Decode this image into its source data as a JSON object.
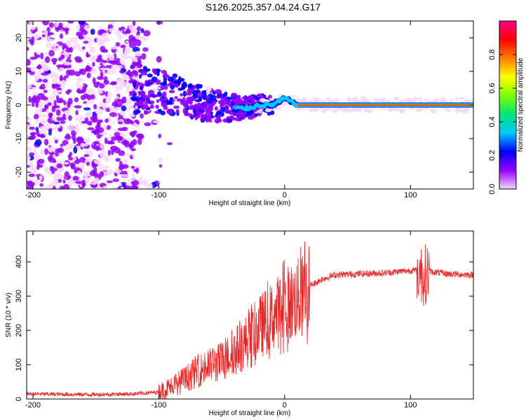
{
  "figure": {
    "title": "S126.2025.357.04.24.G17"
  },
  "chart_data": [
    {
      "type": "heatmap",
      "xlabel": "Height of straight line (km)",
      "ylabel": "Frequency (Hz)",
      "xlim": [
        -205,
        150
      ],
      "ylim": [
        -25,
        25
      ],
      "x_ticks": [
        -200,
        -100,
        0,
        100
      ],
      "x_tick_labels": [
        "-200",
        "-100",
        "0",
        "100"
      ],
      "y_ticks": [
        20,
        10,
        0,
        -10,
        -20
      ],
      "y_tick_labels": [
        "20",
        "10",
        "0",
        "-10",
        "-20"
      ],
      "colorbar": {
        "label": "Normalized spectral amplitude",
        "range": [
          0,
          1
        ],
        "ticks": [
          0.0,
          0.2,
          0.4,
          0.6,
          0.8
        ],
        "tick_labels": [
          "0.0",
          "0.2",
          "0.4",
          "0.6",
          "0.8"
        ],
        "colors": [
          "#f4d8fb",
          "#9400ff",
          "#0000ff",
          "#00c8ff",
          "#00e676",
          "#7cff00",
          "#ffff00",
          "#ff7f00",
          "#ff0000",
          "#ff0088"
        ]
      },
      "ridge": {
        "x": [
          -120,
          -100,
          -80,
          -60,
          -40,
          -30,
          -20,
          -10,
          0,
          10,
          40,
          80,
          100,
          110,
          150
        ],
        "freq_hz": [
          5,
          4,
          2,
          0,
          -1,
          -1,
          0,
          0,
          2,
          0,
          0,
          0,
          0,
          0,
          0
        ]
      }
    },
    {
      "type": "line",
      "xlabel": "Height of straight line (km)",
      "ylabel": "SNR (10 * v/v)",
      "xlim": [
        -205,
        150
      ],
      "ylim": [
        0,
        490
      ],
      "x_ticks": [
        -200,
        -100,
        0,
        100
      ],
      "x_tick_labels": [
        "-200",
        "-100",
        "0",
        "100"
      ],
      "y_ticks": [
        0,
        100,
        200,
        300,
        400
      ],
      "y_tick_labels": [
        "0",
        "100",
        "200",
        "300",
        "400"
      ],
      "color": "#ee2222",
      "series": [
        {
          "name": "SNR",
          "x": [
            -205,
            -180,
            -150,
            -120,
            -100,
            -90,
            -80,
            -70,
            -60,
            -50,
            -40,
            -30,
            -20,
            -10,
            0,
            10,
            15,
            20,
            30,
            40,
            60,
            80,
            100,
            105,
            110,
            115,
            130,
            150
          ],
          "values": [
            15,
            14,
            13,
            15,
            20,
            35,
            55,
            80,
            95,
            110,
            140,
            170,
            210,
            240,
            270,
            290,
            300,
            330,
            350,
            362,
            365,
            368,
            375,
            375,
            360,
            372,
            365,
            362
          ]
        }
      ]
    }
  ]
}
